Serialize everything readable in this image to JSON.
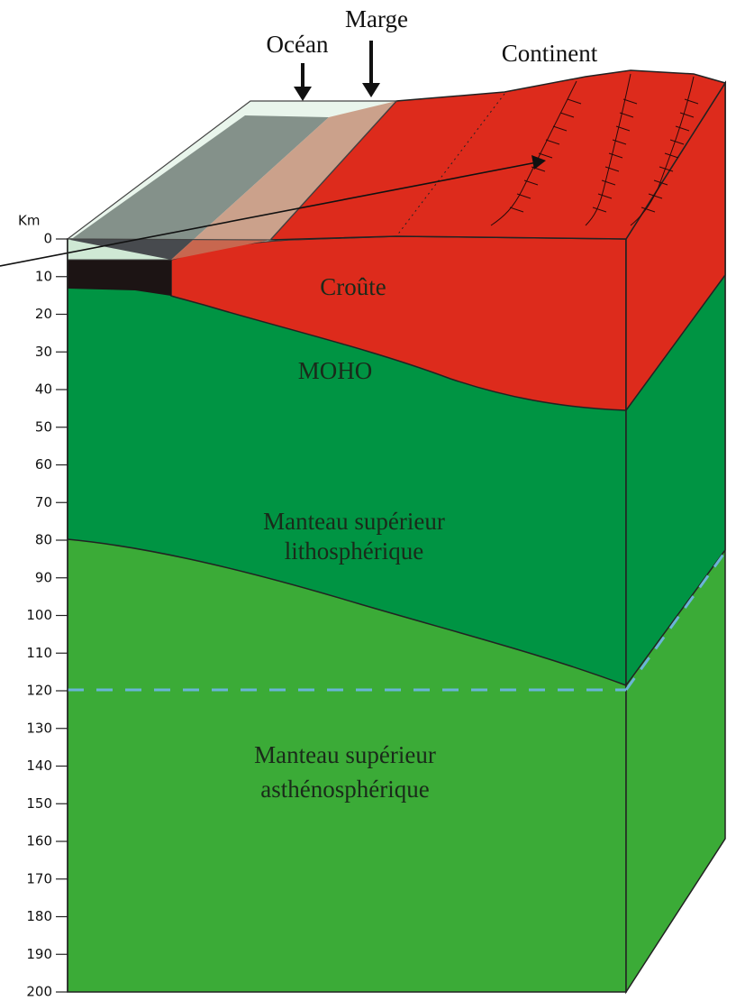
{
  "labels": {
    "ocean": "Océan",
    "margin": "Marge",
    "continent": "Continent",
    "crust": "Croûte",
    "moho": "MOHO",
    "lithosphere": [
      "Manteau supérieur",
      "lithosphérique"
    ],
    "asthenosphere": [
      "Manteau supérieur",
      "asthénosphérique"
    ]
  },
  "depth_axis": {
    "unit": "Km",
    "range": [
      0,
      200
    ],
    "ticks": [
      0,
      10,
      20,
      30,
      40,
      50,
      60,
      70,
      80,
      90,
      100,
      110,
      120,
      130,
      140,
      150,
      160,
      170,
      180,
      190,
      200
    ]
  }
}
